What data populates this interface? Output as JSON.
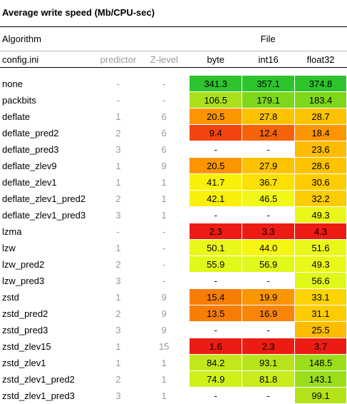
{
  "title": "Average write speed (Mb/CPU-sec)",
  "header": {
    "algorithm": "Algorithm",
    "file": "File",
    "config": "config.ini",
    "predictor": "predictor",
    "zlevel": "Z-level",
    "cols": [
      "byte",
      "int16",
      "float32"
    ]
  },
  "rows": [
    {
      "name": "none",
      "pred": "-",
      "z": "-",
      "vals": [
        {
          "v": "341.3",
          "c": "#2ec42e"
        },
        {
          "v": "357.1",
          "c": "#2ec42e"
        },
        {
          "v": "374.8",
          "c": "#2ec42e"
        }
      ]
    },
    {
      "name": "packbits",
      "pred": "-",
      "z": "-",
      "vals": [
        {
          "v": "106.5",
          "c": "#aae01b"
        },
        {
          "v": "179.1",
          "c": "#7ed71b"
        },
        {
          "v": "183.4",
          "c": "#7ed71b"
        }
      ]
    },
    {
      "name": "deflate",
      "pred": "1",
      "z": "6",
      "vals": [
        {
          "v": "20.5",
          "c": "#fb9500"
        },
        {
          "v": "27.8",
          "c": "#fdc200"
        },
        {
          "v": "28.7",
          "c": "#fdc200"
        }
      ]
    },
    {
      "name": "deflate_pred2",
      "pred": "2",
      "z": "6",
      "vals": [
        {
          "v": "9.4",
          "c": "#f2440e"
        },
        {
          "v": "12.4",
          "c": "#f6620a"
        },
        {
          "v": "18.4",
          "c": "#fb9500"
        }
      ]
    },
    {
      "name": "deflate_pred3",
      "pred": "3",
      "z": "6",
      "vals": [
        {
          "v": "-",
          "c": "#ffffff"
        },
        {
          "v": "-",
          "c": "#ffffff"
        },
        {
          "v": "23.6",
          "c": "#fdbc00"
        }
      ]
    },
    {
      "name": "deflate_zlev9",
      "pred": "1",
      "z": "9",
      "vals": [
        {
          "v": "20.5",
          "c": "#fb9500"
        },
        {
          "v": "27.9",
          "c": "#fdc200"
        },
        {
          "v": "28.6",
          "c": "#fdc200"
        }
      ]
    },
    {
      "name": "deflate_zlev1",
      "pred": "1",
      "z": "1",
      "vals": [
        {
          "v": "41.7",
          "c": "#f9f00a"
        },
        {
          "v": "36.7",
          "c": "#fddf00"
        },
        {
          "v": "30.6",
          "c": "#fdcc00"
        }
      ]
    },
    {
      "name": "deflate_zlev1_pred2",
      "pred": "2",
      "z": "1",
      "vals": [
        {
          "v": "42.1",
          "c": "#f9f00a"
        },
        {
          "v": "46.5",
          "c": "#f1f716"
        },
        {
          "v": "32.2",
          "c": "#fdcc00"
        }
      ]
    },
    {
      "name": "deflate_zlev1_pred3",
      "pred": "3",
      "z": "1",
      "vals": [
        {
          "v": "-",
          "c": "#ffffff"
        },
        {
          "v": "-",
          "c": "#ffffff"
        },
        {
          "v": "49.3",
          "c": "#eaf71a"
        }
      ]
    },
    {
      "name": "lzma",
      "pred": "-",
      "z": "-",
      "vals": [
        {
          "v": "2.3",
          "c": "#ec1c14"
        },
        {
          "v": "3.3",
          "c": "#ec1c14"
        },
        {
          "v": "4.3",
          "c": "#ec1c14"
        }
      ]
    },
    {
      "name": "lzw",
      "pred": "1",
      "z": "-",
      "vals": [
        {
          "v": "50.1",
          "c": "#eaf71a"
        },
        {
          "v": "44.0",
          "c": "#f5f510"
        },
        {
          "v": "51.6",
          "c": "#eaf71a"
        }
      ]
    },
    {
      "name": "lzw_pred2",
      "pred": "2",
      "z": "-",
      "vals": [
        {
          "v": "55.9",
          "c": "#e2f71a"
        },
        {
          "v": "56.9",
          "c": "#e2f71a"
        },
        {
          "v": "49.3",
          "c": "#eaf71a"
        }
      ]
    },
    {
      "name": "lzw_pred3",
      "pred": "3",
      "z": "-",
      "vals": [
        {
          "v": "-",
          "c": "#ffffff"
        },
        {
          "v": "-",
          "c": "#ffffff"
        },
        {
          "v": "56.6",
          "c": "#e2f71a"
        }
      ]
    },
    {
      "name": "zstd",
      "pred": "1",
      "z": "9",
      "vals": [
        {
          "v": "15.4",
          "c": "#f77d07"
        },
        {
          "v": "19.9",
          "c": "#fb9500"
        },
        {
          "v": "33.1",
          "c": "#fdd300"
        }
      ]
    },
    {
      "name": "zstd_pred2",
      "pred": "2",
      "z": "9",
      "vals": [
        {
          "v": "13.5",
          "c": "#f77d07"
        },
        {
          "v": "16.9",
          "c": "#f9840a"
        },
        {
          "v": "31.1",
          "c": "#fdcc00"
        }
      ]
    },
    {
      "name": "zstd_pred3",
      "pred": "3",
      "z": "9",
      "vals": [
        {
          "v": "-",
          "c": "#ffffff"
        },
        {
          "v": "-",
          "c": "#ffffff"
        },
        {
          "v": "25.5",
          "c": "#fdbc00"
        }
      ]
    },
    {
      "name": "zstd_zlev15",
      "pred": "1",
      "z": "15",
      "vals": [
        {
          "v": "1.6",
          "c": "#ec1c14"
        },
        {
          "v": "2.3",
          "c": "#ec1c14"
        },
        {
          "v": "3.7",
          "c": "#ec1c14"
        }
      ]
    },
    {
      "name": "zstd_zlev1",
      "pred": "1",
      "z": "1",
      "vals": [
        {
          "v": "84.2",
          "c": "#c2e71b"
        },
        {
          "v": "93.1",
          "c": "#b7e41b"
        },
        {
          "v": "148.5",
          "c": "#9ade1b"
        }
      ]
    },
    {
      "name": "zstd_zlev1_pred2",
      "pred": "2",
      "z": "1",
      "vals": [
        {
          "v": "74.9",
          "c": "#cfef1b"
        },
        {
          "v": "81.8",
          "c": "#c7eb1b"
        },
        {
          "v": "143.1",
          "c": "#9ade1b"
        }
      ]
    },
    {
      "name": "zstd_zlev1_pred3",
      "pred": "3",
      "z": "1",
      "vals": [
        {
          "v": "-",
          "c": "#ffffff"
        },
        {
          "v": "-",
          "c": "#ffffff"
        },
        {
          "v": "99.1",
          "c": "#b3e41b"
        }
      ]
    }
  ]
}
